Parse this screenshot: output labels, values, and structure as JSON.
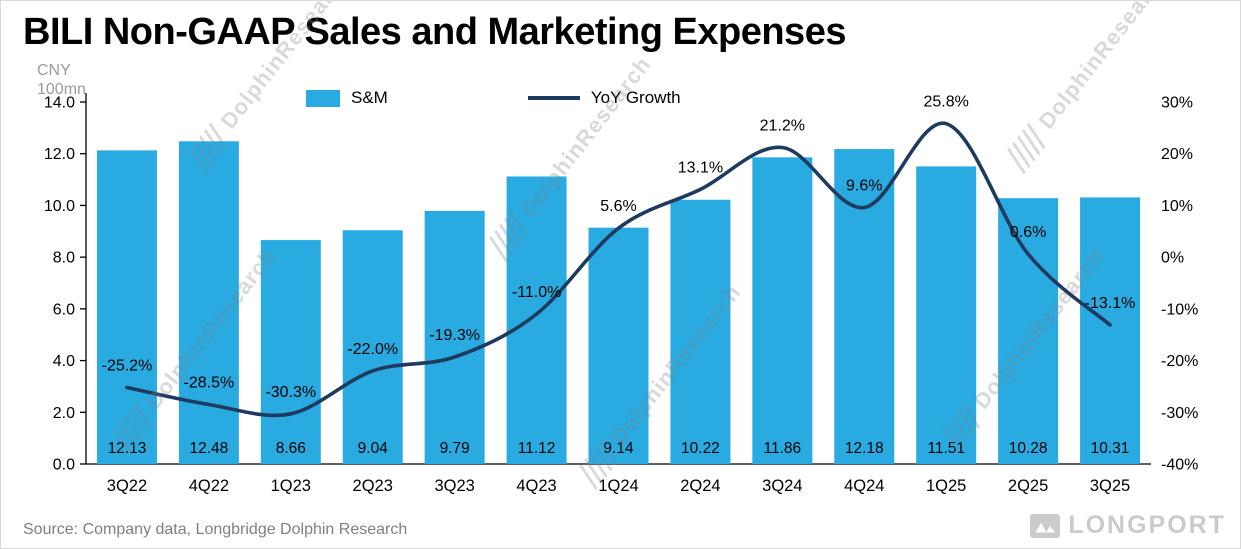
{
  "header": {
    "title": "BILI Non-GAAP Sales and Marketing Expenses",
    "unit_line1": "CNY",
    "unit_line2": "100mn"
  },
  "legend": [
    {
      "label": "S&M",
      "type": "bar"
    },
    {
      "label": "YoY Growth",
      "type": "line"
    }
  ],
  "footer": {
    "source": "Source: Company data, Longbridge Dolphin Research",
    "logo_text": "LONGPORT"
  },
  "watermark": {
    "text": "DolphinResearch"
  },
  "colors": {
    "bar": "#29ABE2",
    "line": "#1F3A5F",
    "axis": "#000000",
    "text": "#000000",
    "muted": "#7F7F7F",
    "watermark": "rgba(128,128,128,0.30)",
    "logo": "#CBCBCB"
  },
  "chart_data": {
    "type": "bar+line combo",
    "title": "BILI Non-GAAP Sales and Marketing Expenses",
    "unit": "CNY 100mn",
    "categories": [
      "3Q22",
      "4Q22",
      "1Q23",
      "2Q23",
      "3Q23",
      "4Q23",
      "1Q24",
      "2Q24",
      "3Q24",
      "4Q24",
      "1Q25",
      "2Q25",
      "3Q25"
    ],
    "series": [
      {
        "name": "S&M",
        "type": "bar",
        "axis": "left",
        "values": [
          12.13,
          12.48,
          8.66,
          9.04,
          9.79,
          11.12,
          9.14,
          10.22,
          11.86,
          12.18,
          11.51,
          10.28,
          10.31
        ],
        "labels": [
          "12.13",
          "12.48",
          "8.66",
          "9.04",
          "9.79",
          "11.12",
          "9.14",
          "10.22",
          "11.86",
          "12.18",
          "11.51",
          "10.28",
          "10.31"
        ]
      },
      {
        "name": "YoY Growth",
        "type": "line",
        "axis": "right",
        "values": [
          -25.2,
          -28.5,
          -30.3,
          -22.0,
          -19.3,
          -11.0,
          5.6,
          13.1,
          21.2,
          9.6,
          25.8,
          0.6,
          -13.1
        ],
        "labels": [
          "-25.2%",
          "-28.5%",
          "-30.3%",
          "-22.0%",
          "-19.3%",
          "-11.0%",
          "5.6%",
          "13.1%",
          "21.2%",
          "9.6%",
          "25.8%",
          "0.6%",
          "-13.1%"
        ]
      }
    ],
    "left_axis": {
      "min": 0,
      "max": 14,
      "step": 2,
      "tick_labels": [
        "0.0",
        "2.0",
        "4.0",
        "6.0",
        "8.0",
        "10.0",
        "12.0",
        "14.0"
      ]
    },
    "right_axis": {
      "min": -40,
      "max": 30,
      "step": 10,
      "tick_labels": [
        "-40%",
        "-30%",
        "-20%",
        "-10%",
        "0%",
        "10%",
        "20%",
        "30%"
      ]
    },
    "legend_position": "top",
    "grid": false
  }
}
